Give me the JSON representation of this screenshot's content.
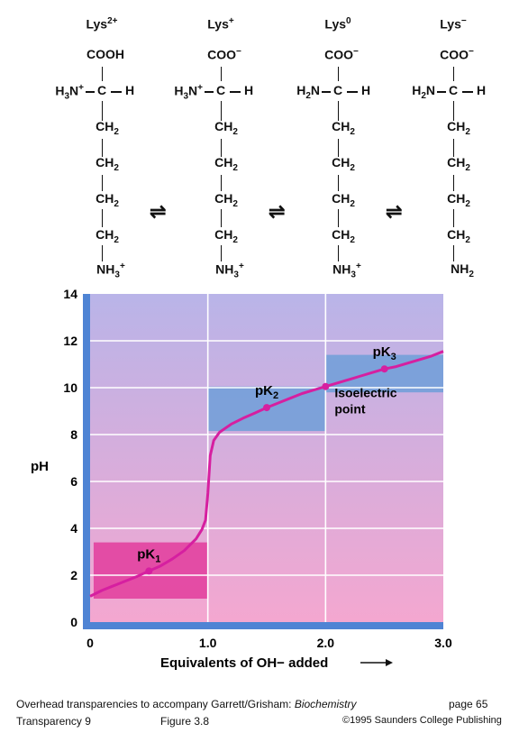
{
  "species": [
    {
      "name": "Lys",
      "charge": "2+",
      "top": "COOH",
      "left": "H3N+",
      "right": "H",
      "bottom": "NH3+"
    },
    {
      "name": "Lys",
      "charge": "+",
      "top": "COO−",
      "left": "H3N+",
      "right": "H",
      "bottom": "NH3+"
    },
    {
      "name": "Lys",
      "charge": "0",
      "top": "COO−",
      "left": "H2N",
      "right": "H",
      "bottom": "NH3+"
    },
    {
      "name": "Lys",
      "charge": "−",
      "top": "COO−",
      "left": "H2N",
      "right": "H",
      "bottom": "NH2"
    }
  ],
  "chain": [
    "CH2",
    "CH2",
    "CH2",
    "CH2"
  ],
  "alpha_carbon": "C",
  "equilibrium_symbol": "⇌",
  "chart_data": {
    "type": "line",
    "xlabel": "Equivalents of OH− added",
    "ylabel": "pH",
    "xlim": [
      0,
      3.0
    ],
    "ylim": [
      0,
      14
    ],
    "xticks": [
      "0",
      "1.0",
      "2.0",
      "3.0"
    ],
    "yticks": [
      "0",
      "2",
      "4",
      "6",
      "8",
      "10",
      "12",
      "14"
    ],
    "grid": true,
    "series": [
      {
        "x": [
          0,
          0.1,
          0.2,
          0.3,
          0.4,
          0.5,
          0.6,
          0.7,
          0.8,
          0.9,
          0.95,
          0.98,
          1.0,
          1.02,
          1.05,
          1.1,
          1.2,
          1.3,
          1.4,
          1.5,
          1.6,
          1.7,
          1.8,
          1.9,
          2.0,
          2.1,
          2.2,
          2.3,
          2.4,
          2.5,
          2.6,
          2.7,
          2.8,
          2.9,
          3.0
        ],
        "y": [
          1.1,
          1.35,
          1.55,
          1.75,
          1.95,
          2.18,
          2.4,
          2.7,
          3.05,
          3.55,
          3.95,
          4.35,
          5.5,
          7.1,
          7.75,
          8.1,
          8.45,
          8.7,
          8.92,
          9.15,
          9.35,
          9.55,
          9.75,
          9.9,
          10.05,
          10.2,
          10.35,
          10.5,
          10.65,
          10.8,
          10.9,
          11.05,
          11.2,
          11.35,
          11.55
        ]
      }
    ],
    "points": [
      {
        "label": "pK1",
        "x": 0.5,
        "y": 2.18
      },
      {
        "label": "pK2",
        "x": 1.5,
        "y": 9.15
      },
      {
        "label": "pK3",
        "x": 2.5,
        "y": 10.8
      }
    ],
    "annotation": {
      "line1": "Isoelectric",
      "line2": "point",
      "x": 2.0,
      "y": 10.05
    }
  },
  "footer": {
    "line1_prefix": "Overhead transparencies to accompany Garrett/Grisham: ",
    "book": "Biochemistry",
    "page": "page  65",
    "transparency": "Transparency 9",
    "figure": "Figure  3.8",
    "copyright": "©1995 Saunders College Publishing"
  },
  "colors": {
    "bg_top": "#b9b4e8",
    "bg_bottom": "#f4a7d0",
    "curve": "#d61fa0",
    "band_blue": "#6f9fd8",
    "band_pink": "#e23c9c",
    "axis_bar": "#4f84d4"
  }
}
